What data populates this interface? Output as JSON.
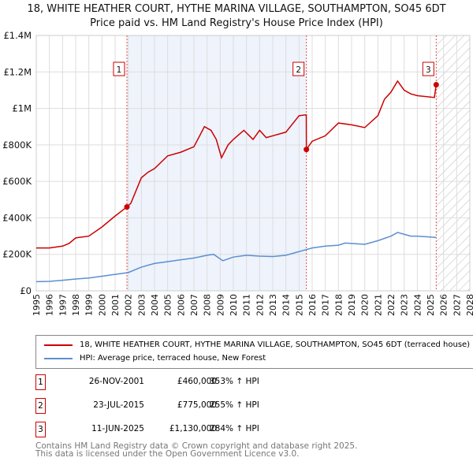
{
  "header": {
    "title": "18, WHITE HEATHER COURT, HYTHE MARINA VILLAGE, SOUTHAMPTON, SO45 6DT",
    "subtitle": "Price paid vs. HM Land Registry's House Price Index (HPI)"
  },
  "chart_data": {
    "type": "line",
    "xlim": [
      1995,
      2028
    ],
    "ylim": [
      0,
      1400000
    ],
    "x_ticks": [
      "1995",
      "1996",
      "1997",
      "1998",
      "1999",
      "2000",
      "2001",
      "2002",
      "2003",
      "2004",
      "2005",
      "2006",
      "2007",
      "2008",
      "2009",
      "2010",
      "2011",
      "2012",
      "2013",
      "2014",
      "2015",
      "2016",
      "2017",
      "2018",
      "2019",
      "2020",
      "2021",
      "2022",
      "2023",
      "2024",
      "2025",
      "2026",
      "2027",
      "2028"
    ],
    "y_ticks": [
      {
        "v": 0,
        "label": "£0"
      },
      {
        "v": 200000,
        "label": "£200K"
      },
      {
        "v": 400000,
        "label": "£400K"
      },
      {
        "v": 600000,
        "label": "£600K"
      },
      {
        "v": 800000,
        "label": "£800K"
      },
      {
        "v": 1000000,
        "label": "£1M"
      },
      {
        "v": 1200000,
        "label": "£1.2M"
      },
      {
        "v": 1400000,
        "label": "£1.4M"
      }
    ],
    "grid": true,
    "shaded_range": [
      2001.9,
      2015.56
    ],
    "forecast_hatch_from": 2025.44,
    "series": [
      {
        "name": "18, WHITE HEATHER COURT, HYTHE MARINA VILLAGE, SOUTHAMPTON, SO45 6DT (terraced house)",
        "color": "#cc0000",
        "x": [
          1995,
          1996,
          1997,
          1997.5,
          1998,
          1999,
          2000,
          2001,
          2001.9,
          2002.2,
          2003,
          2003.5,
          2004,
          2005,
          2006,
          2007,
          2007.8,
          2008.3,
          2008.7,
          2009.1,
          2009.6,
          2010,
          2010.8,
          2011.5,
          2012,
          2012.5,
          2013,
          2014,
          2015,
          2015.55,
          2015.56,
          2016,
          2017,
          2018,
          2019,
          2020,
          2021,
          2021.5,
          2022,
          2022.5,
          2023,
          2023.5,
          2024,
          2025.3,
          2025.44
        ],
        "values": [
          235000,
          235000,
          245000,
          260000,
          290000,
          300000,
          350000,
          410000,
          460000,
          480000,
          620000,
          650000,
          670000,
          740000,
          760000,
          790000,
          900000,
          880000,
          830000,
          730000,
          800000,
          830000,
          880000,
          830000,
          880000,
          840000,
          850000,
          870000,
          960000,
          965000,
          775000,
          820000,
          850000,
          920000,
          910000,
          895000,
          960000,
          1050000,
          1090000,
          1150000,
          1100000,
          1080000,
          1070000,
          1060000,
          1130000
        ]
      },
      {
        "name": "HPI: Average price, terraced house, New Forest",
        "color": "#5b8fd0",
        "x": [
          1995,
          1996,
          1997,
          1998,
          1999,
          2000,
          2001,
          2002,
          2003,
          2004,
          2005,
          2006,
          2007,
          2008,
          2008.5,
          2009.2,
          2010,
          2011,
          2012,
          2013,
          2014,
          2015,
          2016,
          2017,
          2018,
          2018.5,
          2019,
          2020,
          2021,
          2022,
          2022.5,
          2023,
          2023.5,
          2024,
          2025,
          2025.44
        ],
        "values": [
          50000,
          52000,
          58000,
          65000,
          70000,
          80000,
          90000,
          100000,
          130000,
          150000,
          160000,
          170000,
          180000,
          195000,
          200000,
          165000,
          185000,
          195000,
          190000,
          188000,
          195000,
          215000,
          235000,
          245000,
          250000,
          262000,
          260000,
          255000,
          275000,
          300000,
          320000,
          310000,
          300000,
          300000,
          295000,
          293000
        ]
      }
    ],
    "sales": [
      {
        "label": "1",
        "x": 2001.9,
        "value": 460000
      },
      {
        "label": "2",
        "x": 2015.56,
        "value": 775000
      },
      {
        "label": "3",
        "x": 2025.44,
        "value": 1130000
      }
    ]
  },
  "table": [
    {
      "num": "1",
      "date": "26-NOV-2001",
      "price": "£460,000",
      "hpi": "353% ↑ HPI"
    },
    {
      "num": "2",
      "date": "23-JUL-2015",
      "price": "£775,000",
      "hpi": "255% ↑ HPI"
    },
    {
      "num": "3",
      "date": "11-JUN-2025",
      "price": "£1,130,000",
      "hpi": "284% ↑ HPI"
    }
  ],
  "footer": {
    "line1": "Contains HM Land Registry data © Crown copyright and database right 2025.",
    "line2": "This data is licensed under the Open Government Licence v3.0."
  }
}
